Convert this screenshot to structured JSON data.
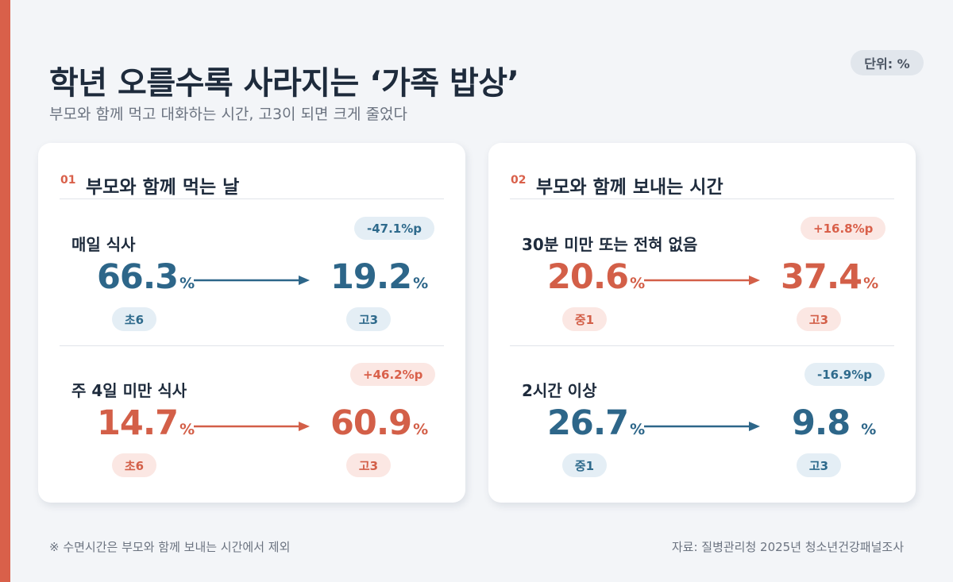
{
  "header": {
    "title": "학년 오를수록 사라지는 ‘가족 밥상’",
    "subtitle": "부모와 함께 먹고 대화하는 시간, 고3이 되면 크게 줄었다",
    "unit_badge": "단위: %"
  },
  "colors": {
    "accent": "#d9604a",
    "decrease": "#2d6689",
    "increase": "#d35f48"
  },
  "cards": [
    {
      "number": "01",
      "title": "부모와 함께 먹는 날",
      "rows": [
        {
          "label": "매일 식사",
          "delta": "-47.1%p",
          "from_value": "66.3",
          "to_value": "19.2",
          "unit": "%",
          "from_grade": "초6",
          "to_grade": "고3",
          "trend": "decrease"
        },
        {
          "label": "주 4일 미만 식사",
          "delta": "+46.2%p",
          "from_value": "14.7",
          "to_value": "60.9",
          "unit": "%",
          "from_grade": "초6",
          "to_grade": "고3",
          "trend": "increase"
        }
      ]
    },
    {
      "number": "02",
      "title": "부모와 함께 보내는 시간",
      "rows": [
        {
          "label": "30분 미만 또는 전혀 없음",
          "delta": "+16.8%p",
          "from_value": "20.6",
          "to_value": "37.4",
          "unit": "%",
          "from_grade": "중1",
          "to_grade": "고3",
          "trend": "increase"
        },
        {
          "label": "2시간 이상",
          "delta": "-16.9%p",
          "from_value": "26.7",
          "to_value": "9.8",
          "unit": "%",
          "from_grade": "중1",
          "to_grade": "고3",
          "trend": "decrease"
        }
      ]
    }
  ],
  "footer": {
    "footnote": "※ 수면시간은 부모와 함께 보내는 시간에서 제외",
    "source": "자료: 질병관리청 2025년 청소년건강패널조사"
  }
}
